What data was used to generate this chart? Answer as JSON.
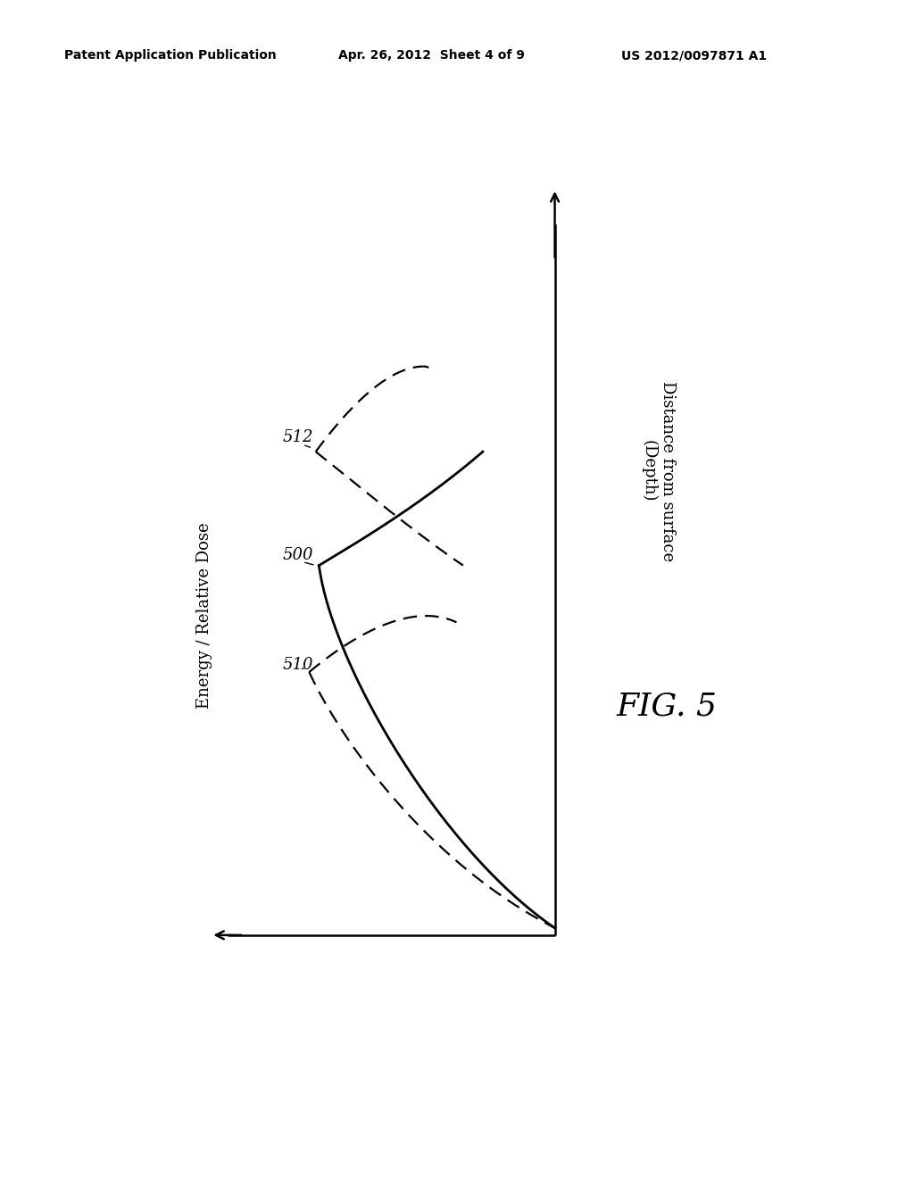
{
  "header_left": "Patent Application Publication",
  "header_center": "Apr. 26, 2012  Sheet 4 of 9",
  "header_right": "US 2012/0097871 A1",
  "fig_label": "FIG. 5",
  "ylabel": "Distance from surface\n(Depth)",
  "xlabel": "Energy / Relative Dose",
  "label_500": "500",
  "label_510": "510",
  "label_512": "512",
  "bg_color": "#ffffff",
  "line_color": "#000000",
  "header_fontsize": 10,
  "axis_label_fontsize": 13,
  "annotation_fontsize": 13,
  "fig_label_fontsize": 26
}
